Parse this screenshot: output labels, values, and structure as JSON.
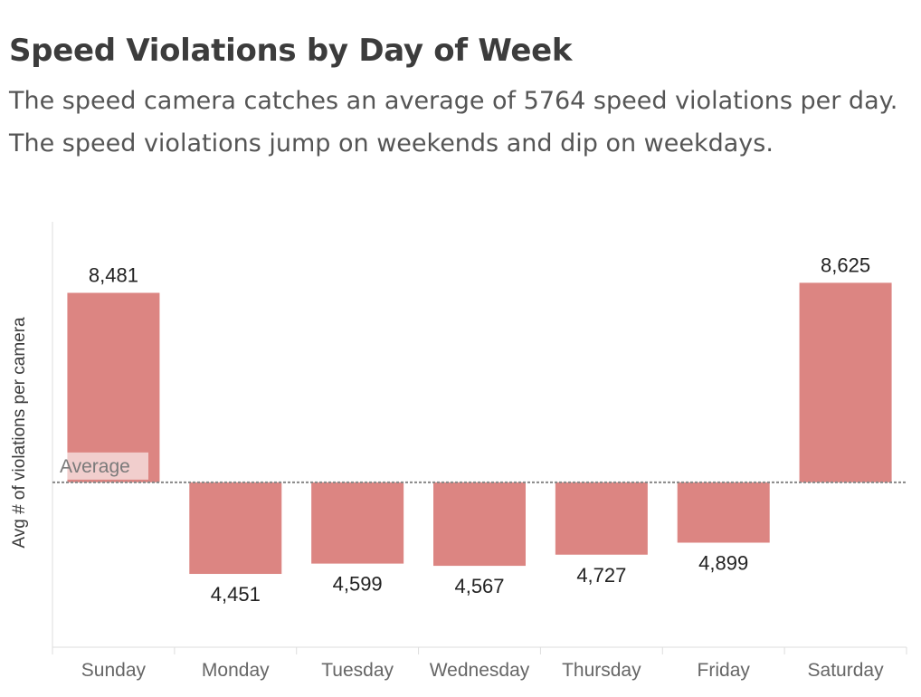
{
  "title": "Speed Violations by Day of Week",
  "subtitle": "The speed camera catches an average of 5764 speed violations per day. The speed violations jump on weekends and dip on weekdays.",
  "colors": {
    "bar": "#dc8582",
    "average_line": "#888888",
    "axis": "#dddddd",
    "label": "#222222",
    "tick": "#666666"
  },
  "chart_data": {
    "type": "bar",
    "baseline": "average",
    "average_value": 5764,
    "reference_line_label": "Average",
    "ylabel": "Avg # of violations per camera",
    "categories": [
      "Sunday",
      "Monday",
      "Tuesday",
      "Wednesday",
      "Thursday",
      "Friday",
      "Saturday"
    ],
    "values": [
      8481,
      4451,
      4599,
      4567,
      4727,
      4899,
      8625
    ],
    "value_labels": [
      "8,481",
      "4,451",
      "4,599",
      "4,567",
      "4,727",
      "4,899",
      "8,625"
    ],
    "ylim": [
      3400,
      9500
    ],
    "grid": false
  }
}
